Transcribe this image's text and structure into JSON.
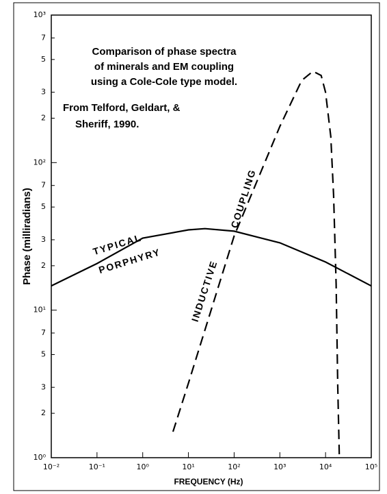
{
  "chart_data": {
    "type": "line",
    "title_lines": [
      "Comparison of phase spectra",
      "of minerals and EM coupling",
      "using a Cole-Cole type model."
    ],
    "source_lines": [
      "From Telford, Geldart, &",
      "Sheriff, 1990."
    ],
    "xlabel": "FREQUENCY (Hz)",
    "ylabel": "Phase (milliradians)",
    "xscale": "log",
    "yscale": "log",
    "grid": false,
    "xlim": [
      0.01,
      100000
    ],
    "ylim": [
      1,
      1000
    ],
    "xticks": [
      {
        "value": 0.01,
        "label": "10⁻²"
      },
      {
        "value": 0.1,
        "label": "10⁻¹"
      },
      {
        "value": 1,
        "label": "10⁰"
      },
      {
        "value": 10,
        "label": "10¹"
      },
      {
        "value": 100,
        "label": "10²"
      },
      {
        "value": 1000,
        "label": "10³"
      },
      {
        "value": 10000,
        "label": "10⁴"
      },
      {
        "value": 100000,
        "label": "10⁵"
      }
    ],
    "yticks": [
      {
        "value": 1,
        "label": "10⁰"
      },
      2,
      3,
      5,
      7,
      {
        "value": 10,
        "label": "10¹"
      },
      {
        "value": 20,
        "label": "2"
      },
      {
        "value": 30,
        "label": "3"
      },
      {
        "value": 50,
        "label": "5"
      },
      {
        "value": 70,
        "label": "7"
      },
      {
        "value": 100,
        "label": "10²"
      },
      {
        "value": 200,
        "label": "2"
      },
      {
        "value": 300,
        "label": "3"
      },
      {
        "value": 500,
        "label": "5"
      },
      {
        "value": 700,
        "label": "7"
      },
      {
        "value": 1000,
        "label": "10³"
      }
    ],
    "series": [
      {
        "labels": [
          "TYPICAL",
          "PORPHYRY"
        ],
        "color": "#000000",
        "dash": false,
        "x": [
          0.01,
          0.1,
          1,
          10,
          23,
          100,
          1000,
          10000,
          100000
        ],
        "values": [
          14.6,
          20.7,
          30.8,
          35,
          35.7,
          34.3,
          28.6,
          21.2,
          14.6
        ]
      },
      {
        "labels": [
          "INDUCTIVE",
          "COUPLING"
        ],
        "color": "#000000",
        "dash": true,
        "x": [
          4.6,
          10,
          100,
          1000,
          3000,
          5300,
          8000,
          10000,
          13000,
          15000,
          17000,
          18500,
          20000
        ],
        "values": [
          1.5,
          3.2,
          31.8,
          176,
          360,
          416,
          390,
          300,
          150,
          60,
          15,
          3,
          1
        ]
      }
    ]
  }
}
